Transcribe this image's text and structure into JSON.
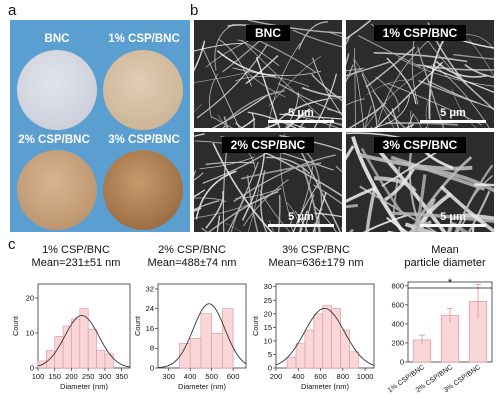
{
  "panel_labels": {
    "a": "a",
    "b": "b",
    "c": "c"
  },
  "samples": {
    "bnc": "BNC",
    "csp1": "1% CSP/BNC",
    "csp2": "2% CSP/BNC",
    "csp3": "3% CSP/BNC"
  },
  "scale_bar": "5 μm",
  "colors": {
    "panel_a_bg": "#5b9fd1",
    "bar_fill": "#f9d6d8",
    "bar_edge": "#e89aa0",
    "fit": "#333333"
  },
  "histograms": {
    "h1": {
      "title": "1% CSP/BNC",
      "mean": "Mean=231±51 nm"
    },
    "h2": {
      "title": "2% CSP/BNC",
      "mean": "Mean=488±74 nm"
    },
    "h3": {
      "title": "3% CSP/BNC",
      "mean": "Mean=636±179 nm"
    }
  },
  "bar_panel": {
    "title_line1": "Mean",
    "title_line2": "particle diameter",
    "sig": "*"
  },
  "chart_data": [
    {
      "type": "bar",
      "title": "1% CSP/BNC",
      "subtitle": "Mean=231±51 nm",
      "xlabel": "Diameter (nm)",
      "ylabel": "Count",
      "x_ticks": [
        100,
        150,
        200,
        250,
        300,
        350
      ],
      "y_ticks": [
        0,
        10,
        20
      ],
      "xlim": [
        100,
        375
      ],
      "ylim": [
        0,
        24
      ],
      "bin_edges": [
        100,
        125,
        150,
        175,
        200,
        225,
        250,
        275,
        300,
        325
      ],
      "values": [
        2,
        5,
        9,
        12,
        14,
        17,
        11,
        5,
        4
      ],
      "fit": {
        "mean": 231,
        "sd": 51,
        "peak": 15
      }
    },
    {
      "type": "bar",
      "title": "2% CSP/BNC",
      "subtitle": "Mean=488±74 nm",
      "xlabel": "Diameter (nm)",
      "ylabel": "Count",
      "x_ticks": [
        300,
        400,
        500,
        600
      ],
      "y_ticks": [
        0,
        8,
        16,
        24,
        32
      ],
      "xlim": [
        250,
        660
      ],
      "ylim": [
        0,
        34
      ],
      "bin_edges": [
        350,
        400,
        450,
        500,
        550,
        600
      ],
      "values": [
        10,
        12,
        22,
        14,
        24
      ],
      "fit": {
        "mean": 488,
        "sd": 74,
        "peak": 26
      }
    },
    {
      "type": "bar",
      "title": "3% CSP/BNC",
      "subtitle": "Mean=636±179 nm",
      "xlabel": "Diameter (nm)",
      "ylabel": "Count",
      "x_ticks": [
        200,
        400,
        600,
        800,
        1000
      ],
      "y_ticks": [
        0,
        5,
        10,
        15,
        20,
        25,
        30
      ],
      "xlim": [
        200,
        1080
      ],
      "ylim": [
        0,
        31
      ],
      "bin_edges": [
        300,
        380,
        460,
        540,
        620,
        700,
        780,
        860,
        940
      ],
      "values": [
        4,
        9,
        14,
        20,
        23,
        22,
        14,
        6
      ],
      "fit": {
        "mean": 636,
        "sd": 179,
        "peak": 22
      }
    },
    {
      "type": "bar",
      "title": "Mean particle diameter",
      "xlabel": "",
      "ylabel": "",
      "categories": [
        "1% CSP/BNC",
        "2% CSP/BNC",
        "3% CSP/BNC"
      ],
      "values": [
        231,
        488,
        636
      ],
      "errors": [
        51,
        74,
        179
      ],
      "y_ticks": [
        0,
        200,
        400,
        600,
        800
      ],
      "ylim": [
        0,
        840
      ],
      "significance": "*"
    }
  ]
}
